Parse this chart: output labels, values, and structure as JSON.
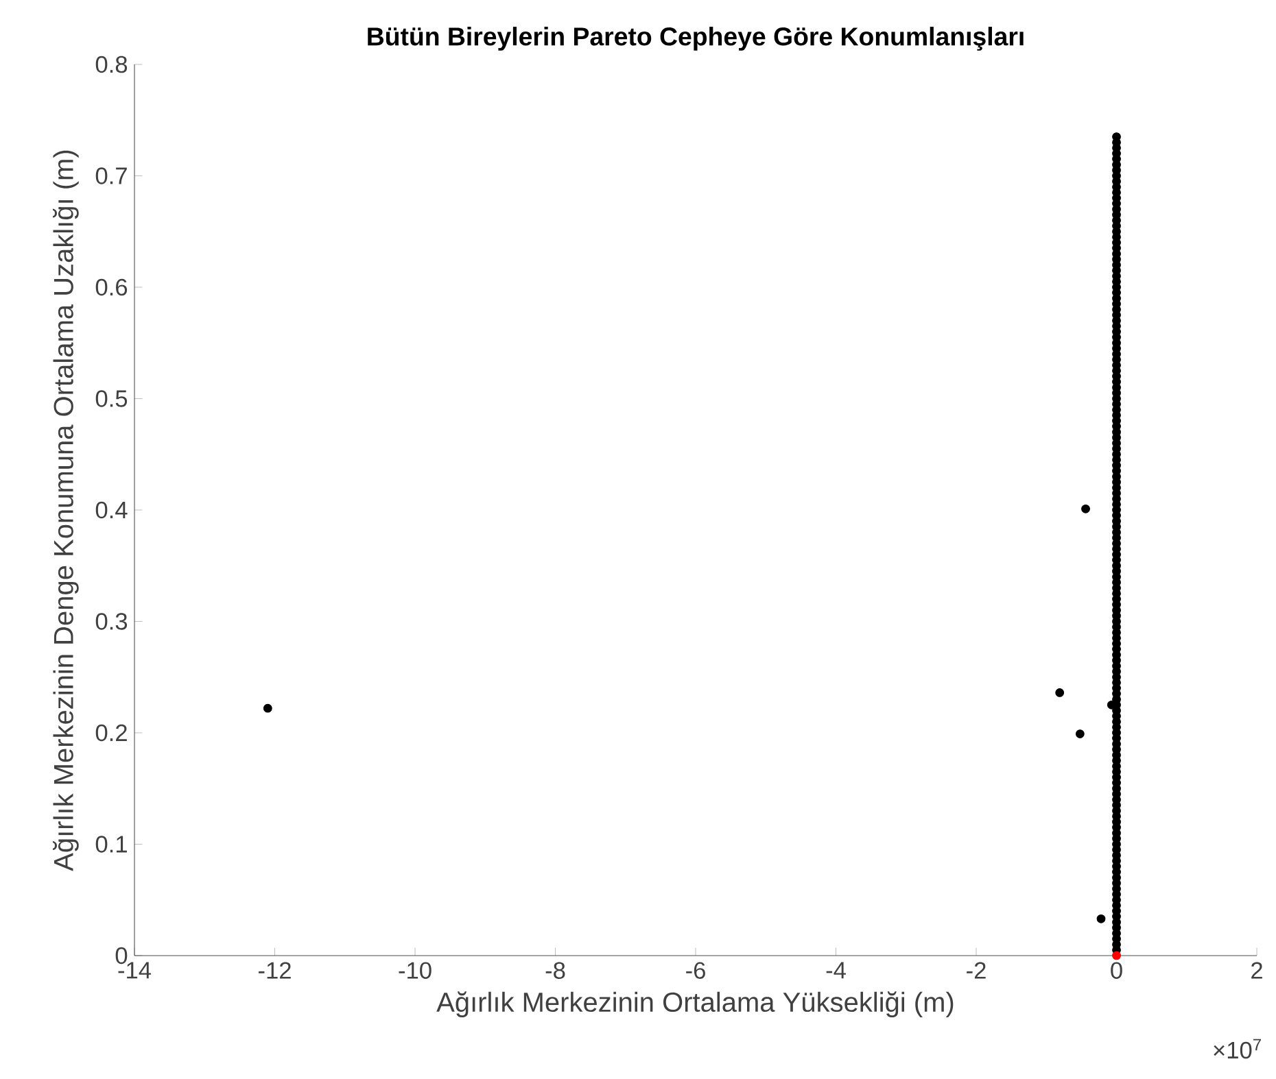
{
  "chart_data": {
    "type": "scatter",
    "title": "**Bütün Bireylerin Pareto Cepheye Göre Konumlanışları**",
    "xlabel": "Ağırlık Merkezinin Ortalama Yüksekliği (m)",
    "ylabel": "Ağırlık Merkezinin Denge Konumuna Ortalama Uzaklığı (m)",
    "annotations": [
      "×10$^{7}$"
    ],
    "marker": "circle",
    "grid": false,
    "xlim": [
      -14,
      2
    ],
    "xticks": [
      -14,
      -12,
      -10,
      -8,
      -6,
      -4,
      -2,
      0,
      2
    ],
    "ylim": [
      0,
      0.8
    ],
    "yticks": [
      0,
      0.1,
      0.2,
      0.3,
      0.4,
      0.5,
      0.6,
      0.7,
      0.8
    ],
    "series": [
      {
        "color": "#000000",
        "x": [
          -12.1,
          -0.81,
          -0.44,
          -0.52,
          -0.22,
          -0.07,
          0,
          0,
          0,
          0,
          0,
          0,
          0,
          0,
          0,
          0,
          0,
          0,
          0,
          0,
          0,
          0,
          0,
          0,
          0,
          0,
          0,
          0,
          0,
          0,
          0,
          0,
          0,
          0,
          0,
          0,
          0,
          0,
          0,
          0,
          0,
          0,
          0,
          0,
          0,
          0,
          0,
          0,
          0,
          0,
          0,
          0,
          0,
          0,
          0,
          0,
          0,
          0,
          0,
          0,
          0,
          0,
          0,
          0,
          0,
          0,
          0,
          0,
          0,
          0,
          0,
          0,
          0,
          0,
          0,
          0,
          0,
          0,
          0,
          0,
          0,
          0,
          0,
          0,
          0,
          0,
          0,
          0,
          0,
          0,
          0,
          0,
          0,
          0,
          0,
          0,
          0,
          0,
          0,
          0,
          0,
          0,
          0,
          0,
          0,
          0,
          0,
          0,
          0,
          0,
          0,
          0,
          0,
          0,
          0,
          0,
          0,
          0,
          0,
          0,
          0,
          0,
          0,
          0,
          0,
          0,
          0,
          0,
          0,
          0,
          0,
          0,
          0,
          0,
          0,
          0,
          0,
          0,
          0,
          0,
          0,
          0,
          0,
          0,
          0,
          0,
          0,
          0,
          0,
          0,
          0,
          0,
          0
        ],
        "values": [
          0.222,
          0.236,
          0.401,
          0.199,
          0.033,
          0.225,
          0.005,
          0.01,
          0.015,
          0.02,
          0.025,
          0.03,
          0.035,
          0.04,
          0.045,
          0.05,
          0.055,
          0.06,
          0.065,
          0.07,
          0.075,
          0.08,
          0.085,
          0.09,
          0.095,
          0.1,
          0.105,
          0.11,
          0.115,
          0.12,
          0.125,
          0.13,
          0.135,
          0.14,
          0.145,
          0.15,
          0.155,
          0.16,
          0.165,
          0.17,
          0.175,
          0.18,
          0.185,
          0.19,
          0.195,
          0.2,
          0.205,
          0.21,
          0.215,
          0.22,
          0.225,
          0.23,
          0.235,
          0.24,
          0.245,
          0.25,
          0.255,
          0.26,
          0.265,
          0.27,
          0.275,
          0.28,
          0.285,
          0.29,
          0.295,
          0.3,
          0.305,
          0.31,
          0.315,
          0.32,
          0.325,
          0.33,
          0.335,
          0.34,
          0.345,
          0.35,
          0.355,
          0.36,
          0.365,
          0.37,
          0.375,
          0.38,
          0.385,
          0.39,
          0.395,
          0.4,
          0.405,
          0.41,
          0.415,
          0.42,
          0.425,
          0.43,
          0.435,
          0.44,
          0.445,
          0.45,
          0.455,
          0.46,
          0.465,
          0.47,
          0.475,
          0.48,
          0.485,
          0.49,
          0.495,
          0.5,
          0.505,
          0.51,
          0.515,
          0.52,
          0.525,
          0.53,
          0.535,
          0.54,
          0.545,
          0.55,
          0.555,
          0.56,
          0.565,
          0.57,
          0.575,
          0.58,
          0.585,
          0.59,
          0.595,
          0.6,
          0.605,
          0.61,
          0.615,
          0.62,
          0.625,
          0.63,
          0.635,
          0.64,
          0.645,
          0.65,
          0.655,
          0.66,
          0.665,
          0.67,
          0.675,
          0.68,
          0.685,
          0.69,
          0.695,
          0.7,
          0.705,
          0.71,
          0.715,
          0.72,
          0.725,
          0.73,
          0.735
        ]
      },
      {
        "color": "#ff0000",
        "x": [
          0
        ],
        "values": [
          0
        ]
      }
    ]
  }
}
